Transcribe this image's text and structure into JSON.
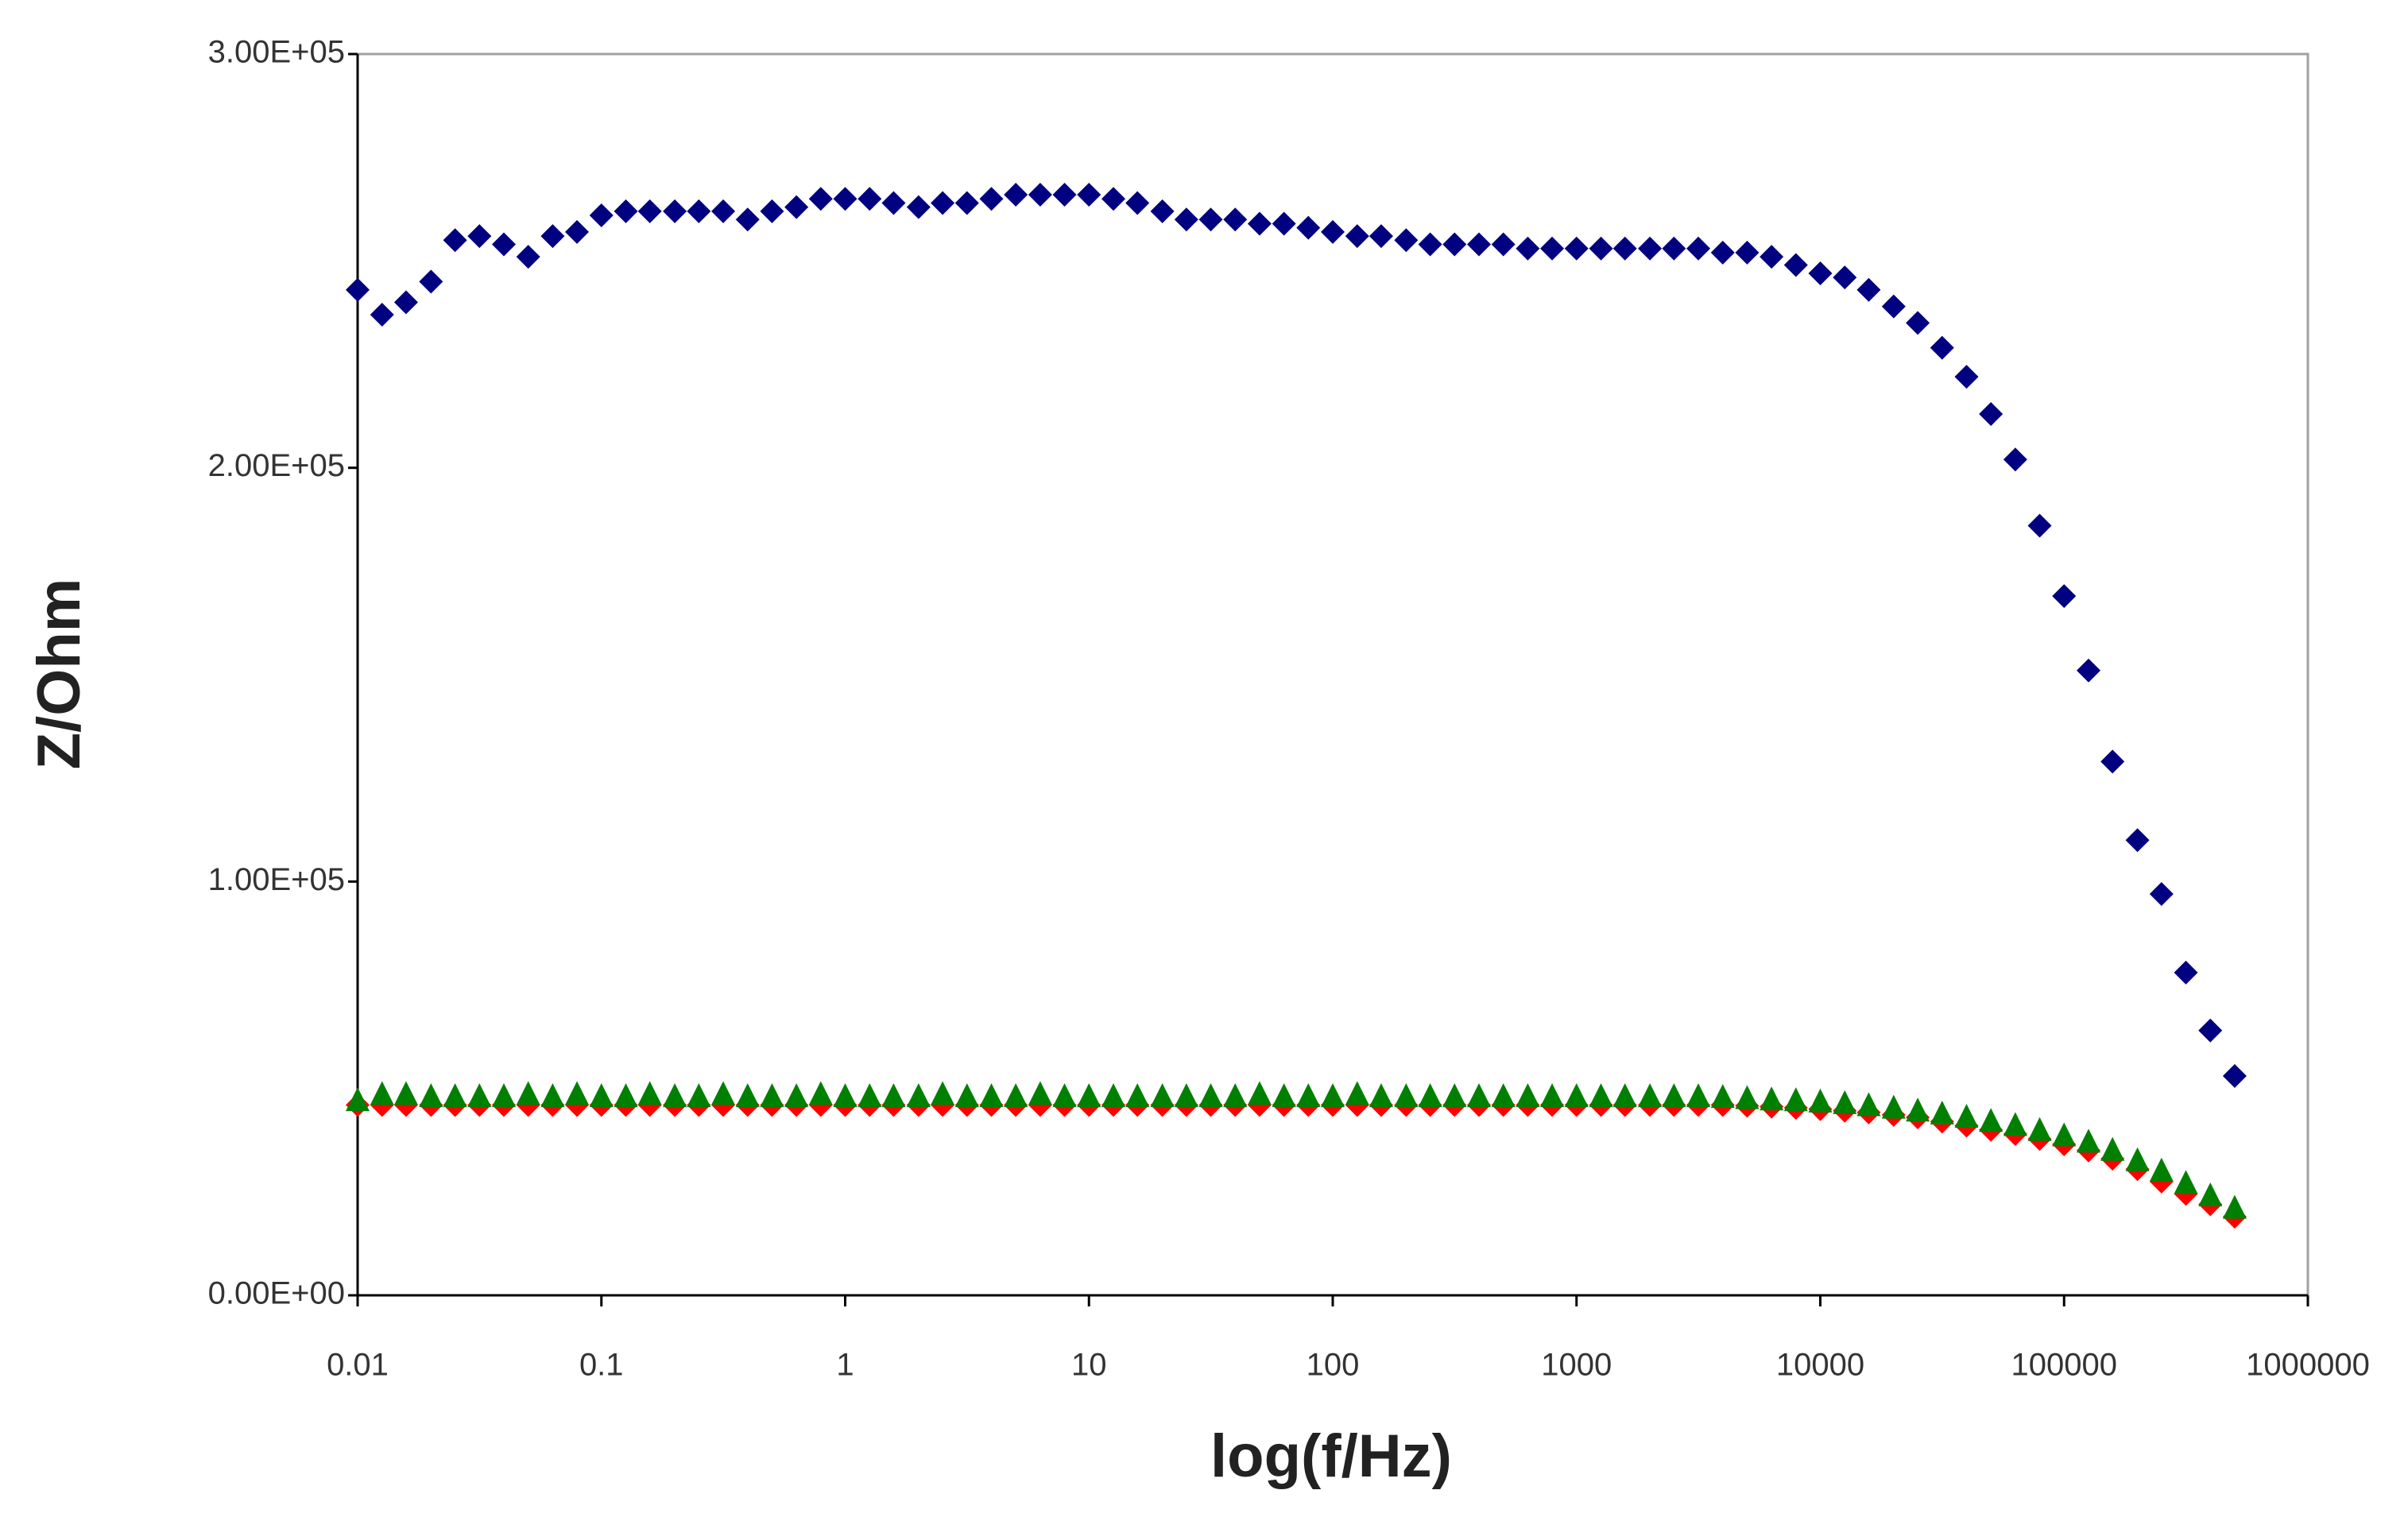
{
  "chart_data": {
    "type": "scatter",
    "xlabel": "log(f/Hz)",
    "ylabel": "Z/Ohm",
    "xscale": "log",
    "grid": false,
    "xlim": [
      0.01,
      1000000
    ],
    "xticks": [
      0.01,
      0.1,
      1,
      10,
      100,
      1000,
      10000,
      100000,
      1000000
    ],
    "ylim": [
      0,
      300000
    ],
    "yticks": [
      {
        "value": 0,
        "label": "0.00E+00"
      },
      {
        "value": 100000,
        "label": "1.00E+05"
      },
      {
        "value": 200000,
        "label": "2.00E+05"
      },
      {
        "value": 300000,
        "label": "3.00E+05"
      }
    ],
    "x": [
      0.01,
      0.0126,
      0.0158,
      0.02,
      0.0251,
      0.0316,
      0.0398,
      0.0501,
      0.0631,
      0.0794,
      0.1,
      0.126,
      0.158,
      0.2,
      0.251,
      0.316,
      0.398,
      0.501,
      0.631,
      0.794,
      1,
      1.26,
      1.58,
      2,
      2.51,
      3.16,
      3.98,
      5.01,
      6.31,
      7.94,
      10,
      12.6,
      15.8,
      20,
      25.1,
      31.6,
      39.8,
      50.1,
      63.1,
      79.4,
      100,
      126,
      158,
      200,
      251,
      316,
      398,
      501,
      631,
      794,
      1000,
      1260,
      1580,
      2000,
      2510,
      3160,
      3980,
      5010,
      6310,
      7940,
      10000,
      12600,
      15800,
      20000,
      25100,
      31600,
      39800,
      50100,
      63100,
      79400,
      100000,
      126000,
      158000,
      200000,
      251000,
      316000,
      398000,
      501000
    ],
    "series": [
      {
        "color": "#000080",
        "marker": "diamond",
        "values": [
          243000,
          237000,
          240000,
          245000,
          255000,
          256000,
          254000,
          251000,
          256000,
          257000,
          261000,
          262000,
          262000,
          262000,
          262000,
          262000,
          260000,
          262000,
          263000,
          265000,
          265000,
          265000,
          264000,
          263000,
          264000,
          264000,
          265000,
          266000,
          266000,
          266000,
          266000,
          265000,
          264000,
          262000,
          260000,
          260000,
          260000,
          259000,
          259000,
          258000,
          257000,
          256000,
          256000,
          255000,
          254000,
          254000,
          254000,
          254000,
          253000,
          253000,
          253000,
          253000,
          253000,
          253000,
          253000,
          253000,
          252000,
          252000,
          251000,
          249000,
          247000,
          246000,
          243000,
          239000,
          235000,
          229000,
          222000,
          213000,
          202000,
          186000,
          169000,
          151000,
          129000,
          110000,
          97000,
          78000,
          64000,
          53000
        ]
      },
      {
        "color": "#ff0000",
        "marker": "diamond",
        "values": [
          46000,
          46000,
          46000,
          46000,
          46000,
          46000,
          46000,
          46000,
          46000,
          46000,
          46000,
          46000,
          46000,
          46000,
          46000,
          46000,
          46000,
          46000,
          46000,
          46000,
          46000,
          46000,
          46000,
          46000,
          46000,
          46000,
          46000,
          46000,
          46000,
          46000,
          46000,
          46000,
          46000,
          46000,
          46000,
          46000,
          46000,
          46000,
          46000,
          46000,
          46000,
          46000,
          46000,
          46000,
          46000,
          46000,
          46000,
          46000,
          46000,
          46000,
          46000,
          46000,
          46000,
          46000,
          46000,
          46000,
          46000,
          45800,
          45600,
          45300,
          45000,
          44600,
          44200,
          43600,
          43000,
          42000,
          41000,
          40000,
          39000,
          37800,
          36500,
          35000,
          33000,
          30500,
          27500,
          24500,
          22000,
          19000
        ]
      },
      {
        "color": "#008000",
        "marker": "triangle",
        "values": [
          47000,
          48500,
          48500,
          48000,
          48000,
          48000,
          48000,
          48500,
          48000,
          48500,
          48000,
          48000,
          48500,
          48000,
          48000,
          48500,
          48000,
          48000,
          48000,
          48500,
          48000,
          48000,
          48000,
          48000,
          48500,
          48000,
          48000,
          48000,
          48500,
          48000,
          48000,
          48000,
          48000,
          48000,
          48000,
          48000,
          48000,
          48500,
          48000,
          48000,
          48000,
          48500,
          48000,
          48000,
          48000,
          48000,
          48000,
          48000,
          48000,
          48000,
          48000,
          48000,
          48000,
          48000,
          48000,
          48000,
          47800,
          47500,
          47200,
          47000,
          46700,
          46300,
          45800,
          45200,
          44500,
          43800,
          43000,
          42000,
          41000,
          39800,
          38500,
          37000,
          35000,
          32500,
          30000,
          27000,
          24000,
          21000
        ]
      }
    ]
  }
}
